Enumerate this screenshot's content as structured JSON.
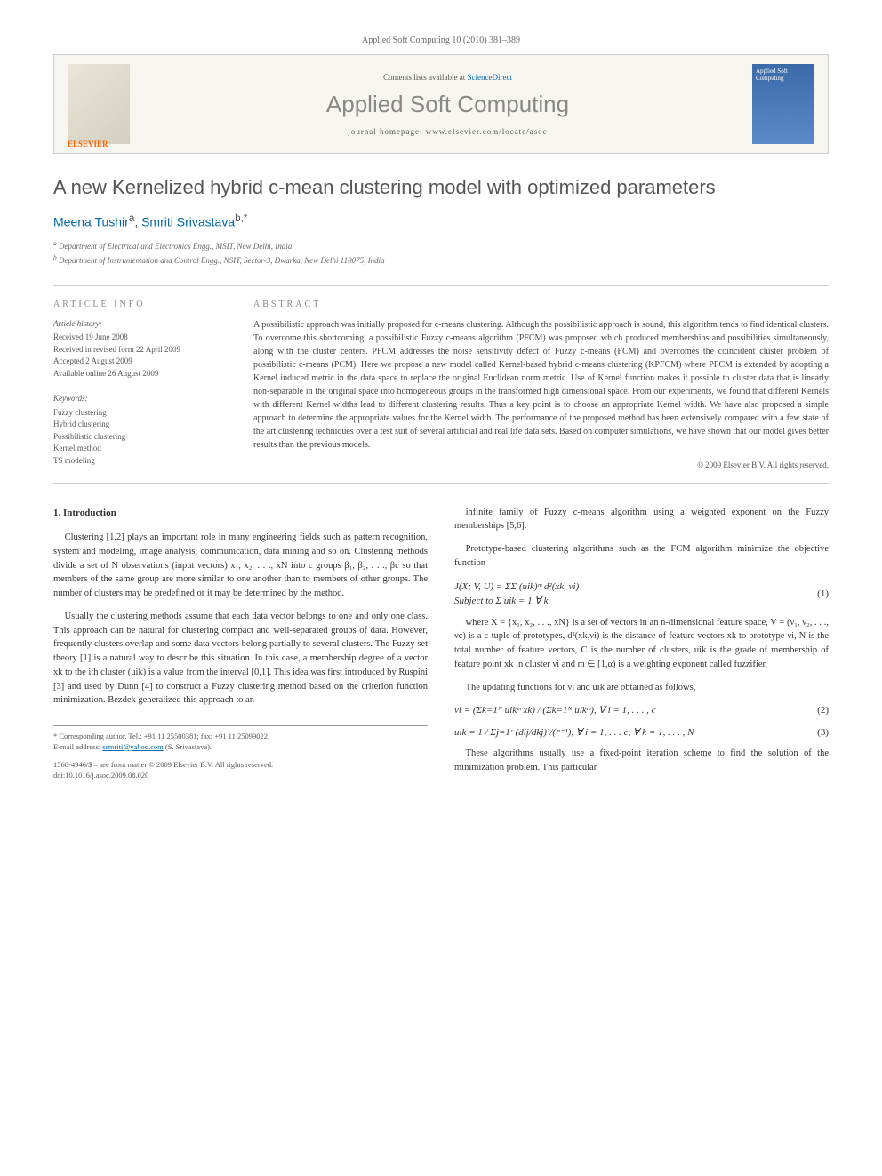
{
  "journal_ref": "Applied Soft Computing 10 (2010) 381–389",
  "banner": {
    "contents_prefix": "Contents lists available at ",
    "contents_link": "ScienceDirect",
    "journal_name": "Applied Soft Computing",
    "homepage_prefix": "journal homepage: ",
    "homepage_url": "www.elsevier.com/locate/asoc",
    "publisher": "ELSEVIER",
    "cover_text": "Applied Soft Computing"
  },
  "title": "A new Kernelized hybrid c-mean clustering model with optimized parameters",
  "authors": {
    "a1_name": "Meena Tushir",
    "a1_sup": "a",
    "a2_name": "Smriti Srivastava",
    "a2_sup": "b,*"
  },
  "affiliations": {
    "a": "Department of Electrical and Electronics Engg., MSIT, New Delhi, India",
    "b": "Department of Instrumentation and Control Engg., NSIT, Sector-3, Dwarka, New Delhi 110075, India"
  },
  "info": {
    "heading": "ARTICLE INFO",
    "history_label": "Article history:",
    "history": {
      "received": "Received 19 June 2008",
      "revised": "Received in revised form 22 April 2009",
      "accepted": "Accepted 2 August 2009",
      "online": "Available online 26 August 2009"
    },
    "keywords_label": "Keywords:",
    "keywords": [
      "Fuzzy clustering",
      "Hybrid clustering",
      "Possibilistic clustering",
      "Kernel method",
      "TS modeling"
    ]
  },
  "abstract": {
    "heading": "ABSTRACT",
    "text": "A possibilistic approach was initially proposed for c-means clustering. Although the possibilistic approach is sound, this algorithm tends to find identical clusters. To overcome this shortcoming, a possibilistic Fuzzy c-means algorithm (PFCM) was proposed which produced memberships and possibilities simultaneously, along with the cluster centers. PFCM addresses the noise sensitivity defect of Fuzzy c-means (FCM) and overcomes the coincident cluster problem of possibilistic c-means (PCM). Here we propose a new model called Kernel-based hybrid c-means clustering (KPFCM) where PFCM is extended by adopting a Kernel induced metric in the data space to replace the original Euclidean norm metric. Use of Kernel function makes it possible to cluster data that is linearly non-separable in the original space into homogeneous groups in the transformed high dimensional space. From our experiments, we found that different Kernels with different Kernel widths lead to different clustering results. Thus a key point is to choose an appropriate Kernel width. We have also proposed a simple approach to determine the appropriate values for the Kernel width. The performance of the proposed method has been extensively compared with a few state of the art clustering techniques over a test suit of several artificial and real life data sets. Based on computer simulations, we have shown that our model gives better results than the previous models.",
    "copyright": "© 2009 Elsevier B.V. All rights reserved."
  },
  "section1": {
    "heading": "1. Introduction",
    "p1": "Clustering [1,2] plays an important role in many engineering fields such as pattern recognition, system and modeling, image analysis, communication, data mining and so on. Clustering methods divide a set of N observations (input vectors) x₁, x₂, . . ., xN into c groups β₁, β₂, . . ., βc so that members of the same group are more similar to one another than to members of other groups. The number of clusters may be predefined or it may be determined by the method.",
    "p2": "Usually the clustering methods assume that each data vector belongs to one and only one class. This approach can be natural for clustering compact and well-separated groups of data. However, frequently clusters overlap and some data vectors belong partially to several clusters. The Fuzzy set theory [1] is a natural way to describe this situation. In this case, a membership degree of a vector xk to the ith cluster (uik) is a value from the interval [0,1]. This idea was first introduced by Ruspini [3] and used by Dunn [4] to construct a Fuzzy clustering method based on the criterion function minimization. Bezdek generalized this approach to an",
    "p3": "infinite family of Fuzzy c-means algorithm using a weighted exponent on the Fuzzy memberships [5,6].",
    "p4": "Prototype-based clustering algorithms such as the FCM algorithm minimize the objective function",
    "p5": "where X = {x₁, x₂, . . ., xN} is a set of vectors in an n-dimensional feature space, V = (ν₁, ν₂, . . ., νc) is a c-tuple of prototypes, d²(xk,νi) is the distance of feature vectors xk to prototype νi, N is the total number of feature vectors, C is the number of clusters, uik is the grade of membership of feature point xk in cluster νi and m ∈ [1,α) is a weighting exponent called fuzzifier.",
    "p6": "The updating functions for νi and uik are obtained as follows,",
    "p7": "These algorithms usually use a fixed-point iteration scheme to find the solution of the minimization problem. This particular"
  },
  "equations": {
    "eq1_line1": "J(X; V, U) = ΣΣ (uik)ᵐ d²(xk, νi)",
    "eq1_line2": "Subject to  Σ uik = 1   ∀  k",
    "eq1_num": "(1)",
    "eq2": "νi = (Σk=1ᴺ uikᵐ xk) / (Σk=1ᴺ uikᵐ),  ∀ i = 1, . . . , c",
    "eq2_num": "(2)",
    "eq3": "uik = 1 / Σj=1ᶜ (dij/dkj)²/(ᵐ⁻¹),  ∀ i = 1, . . . c,   ∀ k = 1, . . . , N",
    "eq3_num": "(3)"
  },
  "footnotes": {
    "corr": "* Corresponding author. Tel.: +91 11 25500381; fax: +91 11 25099022.",
    "email_label": "E-mail address: ",
    "email": "ssmriti@yahoo.com",
    "email_name": " (S. Srivastava)."
  },
  "doi": {
    "line1": "1568-4946/$ – see front matter © 2009 Elsevier B.V. All rights reserved.",
    "line2": "doi:10.1016/j.asoc.2009.08.020"
  }
}
